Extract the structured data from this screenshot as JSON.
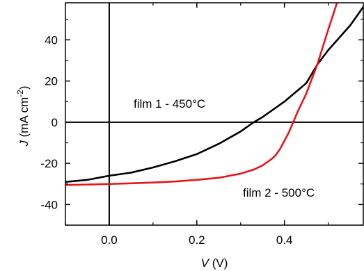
{
  "chart_data": {
    "type": "line",
    "xlabel": {
      "italic": "V",
      "rest": " (V)"
    },
    "ylabel": {
      "italic": "J",
      "rest": " (mA cm",
      "sup": "-2",
      "close": ")"
    },
    "xlim": [
      -0.1,
      0.58
    ],
    "ylim": [
      -50,
      58
    ],
    "xticks": [
      0.0,
      0.2,
      0.4
    ],
    "xtick_labels": [
      "0.0",
      "0.2",
      "0.4"
    ],
    "yticks": [
      -40,
      -20,
      0,
      20,
      40
    ],
    "ytick_labels": [
      "-40",
      "-20",
      "0",
      "20",
      "40"
    ],
    "grid": false,
    "reference_lines": {
      "x": 0,
      "y": 0
    },
    "series": [
      {
        "name": "film 1 - 450°C",
        "color": "#000000",
        "x": [
          -0.1,
          -0.05,
          0.0,
          0.05,
          0.1,
          0.15,
          0.2,
          0.25,
          0.3,
          0.33,
          0.35,
          0.4,
          0.45,
          0.475,
          0.5,
          0.55,
          0.58
        ],
        "y": [
          -29,
          -28,
          -26,
          -24.5,
          -22,
          -19,
          -15.5,
          -10.5,
          -4.5,
          0,
          2.5,
          10,
          19,
          28,
          35,
          47,
          56
        ]
      },
      {
        "name": "film 2 - 500°C",
        "color": "#e8141b",
        "x": [
          -0.1,
          -0.05,
          0.0,
          0.05,
          0.1,
          0.15,
          0.2,
          0.25,
          0.3,
          0.33,
          0.35,
          0.37,
          0.38,
          0.39,
          0.4,
          0.41,
          0.42,
          0.43,
          0.45,
          0.475,
          0.5,
          0.52
        ],
        "y": [
          -30.5,
          -30.3,
          -30,
          -29.7,
          -29.3,
          -28.8,
          -28,
          -27,
          -25,
          -23,
          -21,
          -18,
          -16,
          -13,
          -9,
          -5,
          0,
          5,
          14,
          28,
          45,
          58
        ]
      }
    ],
    "annotations": [
      {
        "text": "film 1 - 450°C",
        "series": 0
      },
      {
        "text": "film 2 - 500°C",
        "series": 1
      }
    ]
  }
}
